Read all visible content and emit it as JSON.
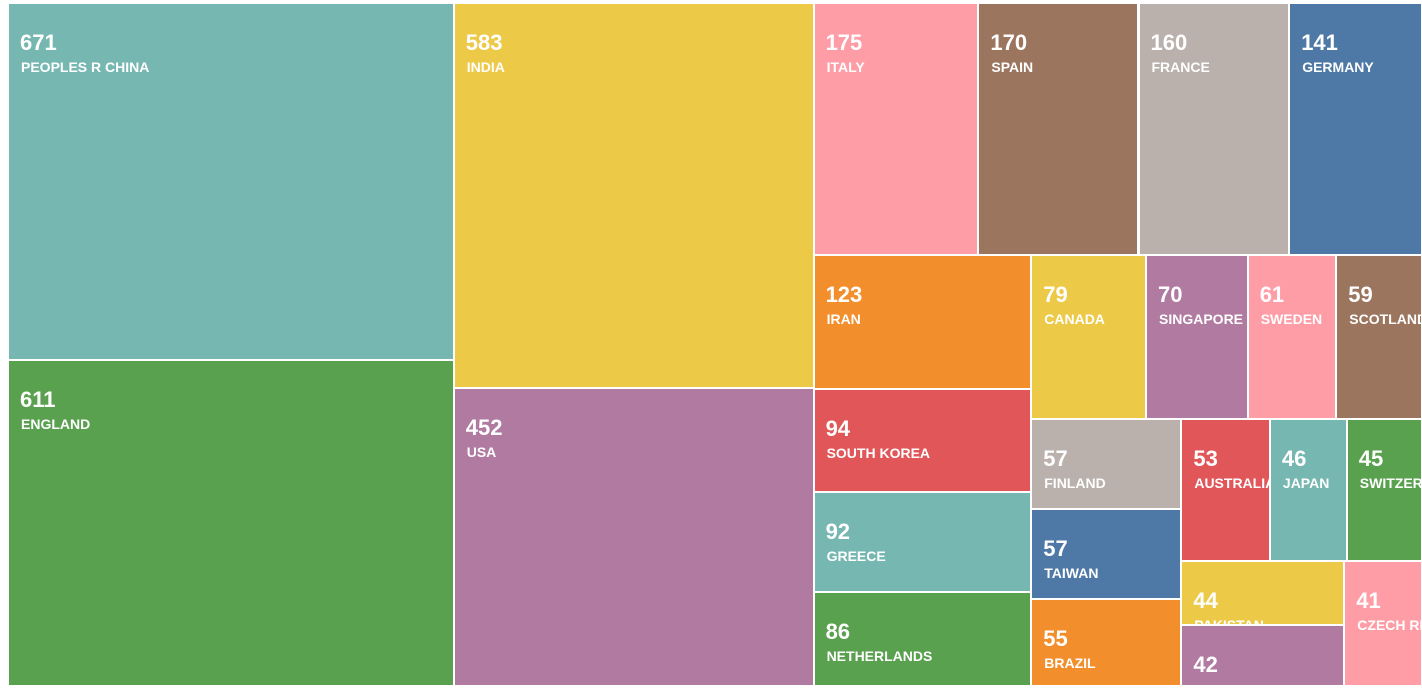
{
  "chart_data": {
    "type": "treemap",
    "categories": [
      "PEOPLES R CHINA",
      "ENGLAND",
      "INDIA",
      "USA",
      "ITALY",
      "SPAIN",
      "FRANCE",
      "GERMANY",
      "IRAN",
      "SOUTH KOREA",
      "GREECE",
      "NETHERLANDS",
      "CANADA",
      "SINGAPORE",
      "SWEDEN",
      "SCOTLAND",
      "FINLAND",
      "TAIWAN",
      "BRAZIL",
      "AUSTRALIA",
      "JAPAN",
      "SWITZERLAND",
      "PAKISTAN",
      null,
      "CZECH REPUBLIC"
    ],
    "values": [
      671,
      611,
      583,
      452,
      175,
      170,
      160,
      141,
      123,
      94,
      92,
      86,
      79,
      70,
      61,
      59,
      57,
      57,
      55,
      53,
      46,
      45,
      44,
      42,
      41
    ],
    "colors": [
      "#76b7b2",
      "#59a14f",
      "#edc948",
      "#b07aa1",
      "#ff9da7",
      "#9c755f",
      "#bab0ac",
      "#4e79a7",
      "#f28e2b",
      "#e15759",
      "#76b7b2",
      "#59a14f",
      "#edc948",
      "#b07aa1",
      "#ff9da7",
      "#9c755f",
      "#bab0ac",
      "#4e79a7",
      "#f28e2b",
      "#e15759",
      "#76b7b2",
      "#59a14f",
      "#edc948",
      "#b07aa1",
      "#ff9da7"
    ]
  }
}
